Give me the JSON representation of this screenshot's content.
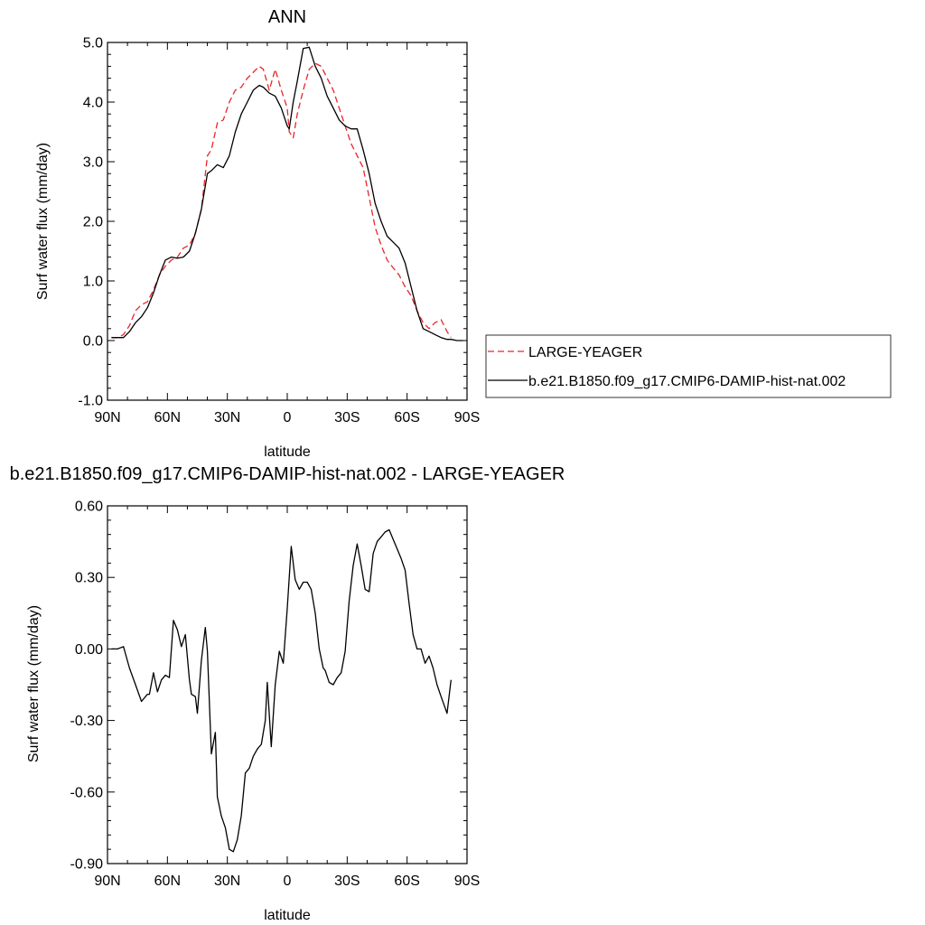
{
  "chart_data": [
    {
      "type": "line",
      "title": "ANN",
      "xlabel": "latitude",
      "ylabel": "Surf water flux (mm/day)",
      "xlim": [
        90,
        -90
      ],
      "ylim": [
        -1.0,
        5.0
      ],
      "x_ticks": [
        90,
        60,
        30,
        0,
        -30,
        -60,
        -90
      ],
      "x_tick_labels": [
        "90N",
        "60N",
        "30N",
        "0",
        "30S",
        "60S",
        "90S"
      ],
      "y_ticks": [
        -1.0,
        0.0,
        1.0,
        2.0,
        3.0,
        4.0,
        5.0
      ],
      "y_tick_labels": [
        "-1.0",
        "0.0",
        "1.0",
        "2.0",
        "3.0",
        "4.0",
        "5.0"
      ],
      "grid": false,
      "legend": "right",
      "series": [
        {
          "name": "LARGE-YEAGER",
          "color": "#e8262a",
          "dash": "dashed",
          "x": [
            88,
            85,
            82,
            79,
            76,
            73,
            70,
            67,
            64,
            61,
            58,
            55,
            52,
            49,
            46,
            43,
            40,
            38,
            35,
            32,
            29,
            26,
            23,
            20,
            17,
            14,
            12,
            9,
            6,
            3,
            0,
            -1,
            -3,
            -5,
            -8,
            -11,
            -14,
            -17,
            -20,
            -23,
            -26,
            -29,
            -32,
            -35,
            -38,
            -41,
            -44,
            -47,
            -50,
            -53,
            -56,
            -59,
            -62,
            -65,
            -68,
            -71,
            -74,
            -77,
            -80,
            -82
          ],
          "y": [
            0.05,
            0.05,
            0.1,
            0.25,
            0.5,
            0.6,
            0.65,
            0.85,
            1.1,
            1.25,
            1.35,
            1.4,
            1.55,
            1.6,
            1.8,
            2.2,
            3.1,
            3.2,
            3.65,
            3.7,
            4.0,
            4.2,
            4.25,
            4.4,
            4.5,
            4.6,
            4.55,
            4.2,
            4.55,
            4.2,
            3.9,
            3.5,
            3.4,
            3.8,
            4.2,
            4.55,
            4.65,
            4.6,
            4.4,
            4.2,
            3.9,
            3.6,
            3.3,
            3.1,
            2.9,
            2.4,
            1.9,
            1.6,
            1.35,
            1.22,
            1.1,
            0.9,
            0.75,
            0.5,
            0.3,
            0.2,
            0.3,
            0.35,
            0.15,
            0.05
          ]
        },
        {
          "name": "b.e21.B1850.f09_g17.CMIP6-DAMIP-hist-nat.002",
          "color": "#000000",
          "dash": "solid",
          "x": [
            88,
            85,
            82,
            79,
            76,
            73,
            70,
            67,
            64,
            61,
            58,
            55,
            52,
            49,
            46,
            43,
            40,
            38,
            35,
            32,
            29,
            26,
            23,
            20,
            17,
            14,
            12,
            9,
            6,
            3,
            0,
            -1,
            -3,
            -5,
            -8,
            -11,
            -14,
            -17,
            -20,
            -23,
            -26,
            -29,
            -32,
            -35,
            -38,
            -41,
            -44,
            -47,
            -50,
            -53,
            -56,
            -59,
            -62,
            -65,
            -68,
            -71,
            -74,
            -77,
            -80,
            -82,
            -85,
            -88
          ],
          "y": [
            0.05,
            0.05,
            0.05,
            0.15,
            0.3,
            0.4,
            0.55,
            0.8,
            1.1,
            1.35,
            1.4,
            1.38,
            1.4,
            1.5,
            1.8,
            2.2,
            2.8,
            2.85,
            2.95,
            2.9,
            3.1,
            3.5,
            3.8,
            4.0,
            4.2,
            4.28,
            4.25,
            4.15,
            4.1,
            3.9,
            3.6,
            3.55,
            4.0,
            4.35,
            4.9,
            4.92,
            4.6,
            4.4,
            4.1,
            3.9,
            3.7,
            3.6,
            3.55,
            3.55,
            3.2,
            2.8,
            2.3,
            2.0,
            1.75,
            1.65,
            1.55,
            1.3,
            0.9,
            0.5,
            0.2,
            0.15,
            0.1,
            0.05,
            0.02,
            0.02,
            0.0,
            0.0
          ]
        }
      ]
    },
    {
      "type": "line",
      "title": "b.e21.B1850.f09_g17.CMIP6-DAMIP-hist-nat.002 - LARGE-YEAGER",
      "xlabel": "latitude",
      "ylabel": "Surf water flux (mm/day)",
      "xlim": [
        90,
        -90
      ],
      "ylim": [
        -0.9,
        0.6
      ],
      "x_ticks": [
        90,
        60,
        30,
        0,
        -30,
        -60,
        -90
      ],
      "x_tick_labels": [
        "90N",
        "60N",
        "30N",
        "0",
        "30S",
        "60S",
        "90S"
      ],
      "y_ticks": [
        -0.9,
        -0.6,
        -0.3,
        0.0,
        0.3,
        0.6
      ],
      "y_tick_labels": [
        "-0.90",
        "-0.60",
        "-0.30",
        "0.00",
        "0.30",
        "0.60"
      ],
      "grid": false,
      "series": [
        {
          "color": "#000000",
          "dash": "solid",
          "x": [
            88,
            85,
            82,
            79,
            76,
            73,
            70,
            69,
            67,
            65,
            63,
            61,
            59,
            57,
            55,
            53,
            51,
            49,
            48,
            46,
            45,
            43,
            41,
            40,
            38,
            36,
            35,
            33,
            31,
            29,
            27,
            25,
            23,
            21,
            19,
            17,
            15,
            13,
            11,
            10,
            8,
            6,
            4,
            2,
            0,
            -2,
            -4,
            -6,
            -8,
            -10,
            -12,
            -14,
            -16,
            -18,
            -19,
            -21,
            -23,
            -25,
            -27,
            -29,
            -31,
            -33,
            -35,
            -37,
            -39,
            -41,
            -43,
            -45,
            -47,
            -49,
            -51,
            -53,
            -55,
            -57,
            -59,
            -61,
            -63,
            -65,
            -67,
            -69,
            -71,
            -73,
            -75,
            -77,
            -80,
            -82
          ],
          "y": [
            0.0,
            0.0,
            0.01,
            -0.08,
            -0.15,
            -0.22,
            -0.19,
            -0.19,
            -0.1,
            -0.18,
            -0.13,
            -0.11,
            -0.12,
            0.12,
            0.08,
            0.01,
            0.06,
            -0.13,
            -0.19,
            -0.2,
            -0.27,
            -0.05,
            0.09,
            -0.01,
            -0.44,
            -0.35,
            -0.62,
            -0.7,
            -0.75,
            -0.84,
            -0.85,
            -0.8,
            -0.7,
            -0.52,
            -0.5,
            -0.45,
            -0.42,
            -0.4,
            -0.3,
            -0.14,
            -0.41,
            -0.15,
            -0.01,
            -0.06,
            0.17,
            0.43,
            0.29,
            0.25,
            0.28,
            0.28,
            0.25,
            0.15,
            0.0,
            -0.08,
            -0.09,
            -0.14,
            -0.15,
            -0.12,
            -0.1,
            -0.01,
            0.2,
            0.35,
            0.44,
            0.35,
            0.25,
            0.24,
            0.4,
            0.45,
            0.47,
            0.49,
            0.5,
            0.46,
            0.42,
            0.38,
            0.33,
            0.19,
            0.06,
            0.0,
            0.0,
            -0.06,
            -0.03,
            -0.08,
            -0.15,
            -0.2,
            -0.27,
            -0.13
          ]
        }
      ]
    }
  ]
}
